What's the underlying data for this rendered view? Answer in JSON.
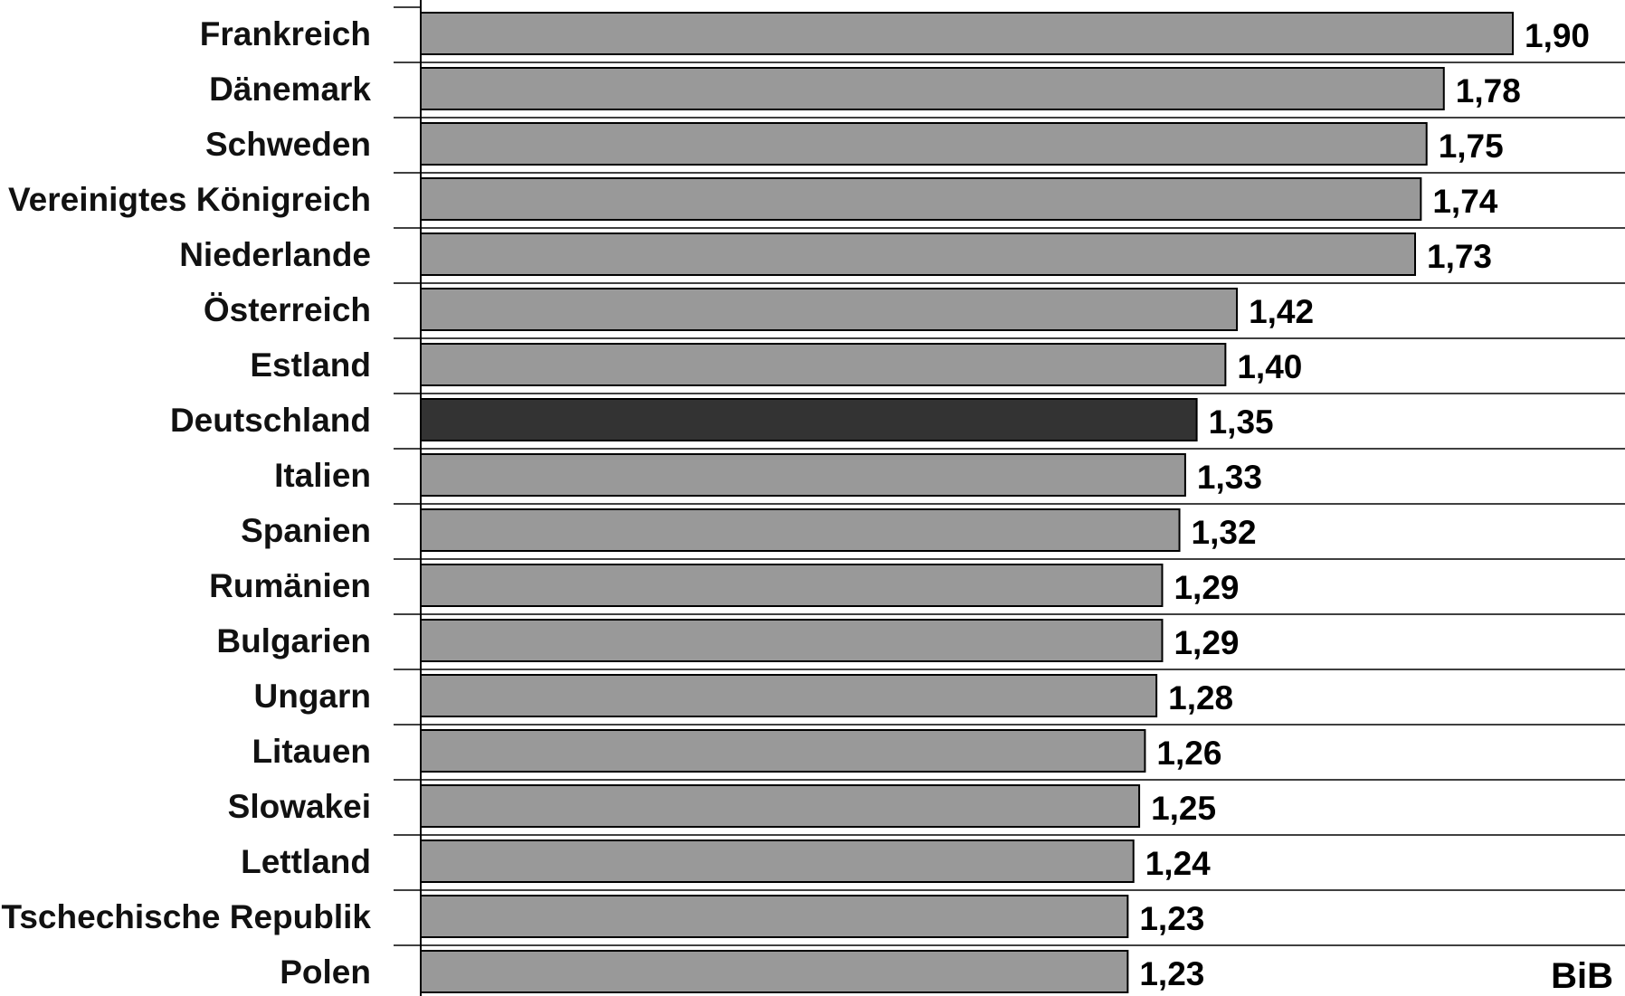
{
  "chart_data": {
    "type": "bar",
    "orientation": "horizontal",
    "categories": [
      "Frankreich",
      "Dänemark",
      "Schweden",
      "Vereinigtes Königreich",
      "Niederlande",
      "Österreich",
      "Estland",
      "Deutschland",
      "Italien",
      "Spanien",
      "Rumänien",
      "Bulgarien",
      "Ungarn",
      "Litauen",
      "Slowakei",
      "Lettland",
      "Tschechische Republik",
      "Polen"
    ],
    "values": [
      1.9,
      1.78,
      1.75,
      1.74,
      1.73,
      1.42,
      1.4,
      1.35,
      1.33,
      1.32,
      1.29,
      1.29,
      1.28,
      1.26,
      1.25,
      1.24,
      1.23,
      1.23
    ],
    "value_labels": [
      "1,90",
      "1,78",
      "1,75",
      "1,74",
      "1,73",
      "1,42",
      "1,40",
      "1,35",
      "1,33",
      "1,32",
      "1,29",
      "1,29",
      "1,28",
      "1,26",
      "1,25",
      "1,24",
      "1,23",
      "1,23"
    ],
    "highlight_category": "Deutschland",
    "xlim": [
      0,
      1.9
    ],
    "grid": "horizontal lines between bars",
    "legend": "none",
    "colors": {
      "bar": "#999999",
      "highlight": "#333333",
      "outline": "#000000"
    }
  },
  "watermark": "BiB"
}
